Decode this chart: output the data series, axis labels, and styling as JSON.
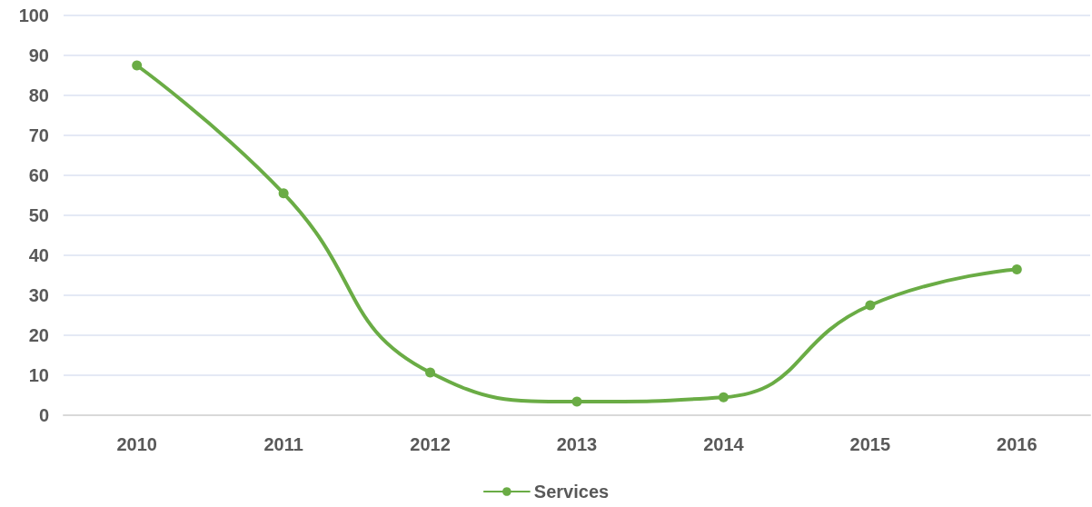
{
  "chart_data": {
    "type": "line",
    "categories": [
      "2010",
      "2011",
      "2012",
      "2013",
      "2014",
      "2015",
      "2016"
    ],
    "series": [
      {
        "name": "Services",
        "color": "#6aac45",
        "values": [
          87.5,
          55.5,
          10.7,
          3.4,
          4.5,
          27.5,
          36.5
        ]
      }
    ],
    "ylim": [
      0,
      100
    ],
    "yticks": [
      0,
      10,
      20,
      30,
      40,
      50,
      60,
      70,
      80,
      90,
      100
    ],
    "grid": "y",
    "legend": "bottom",
    "marker": "circle",
    "line_style": "solid"
  }
}
